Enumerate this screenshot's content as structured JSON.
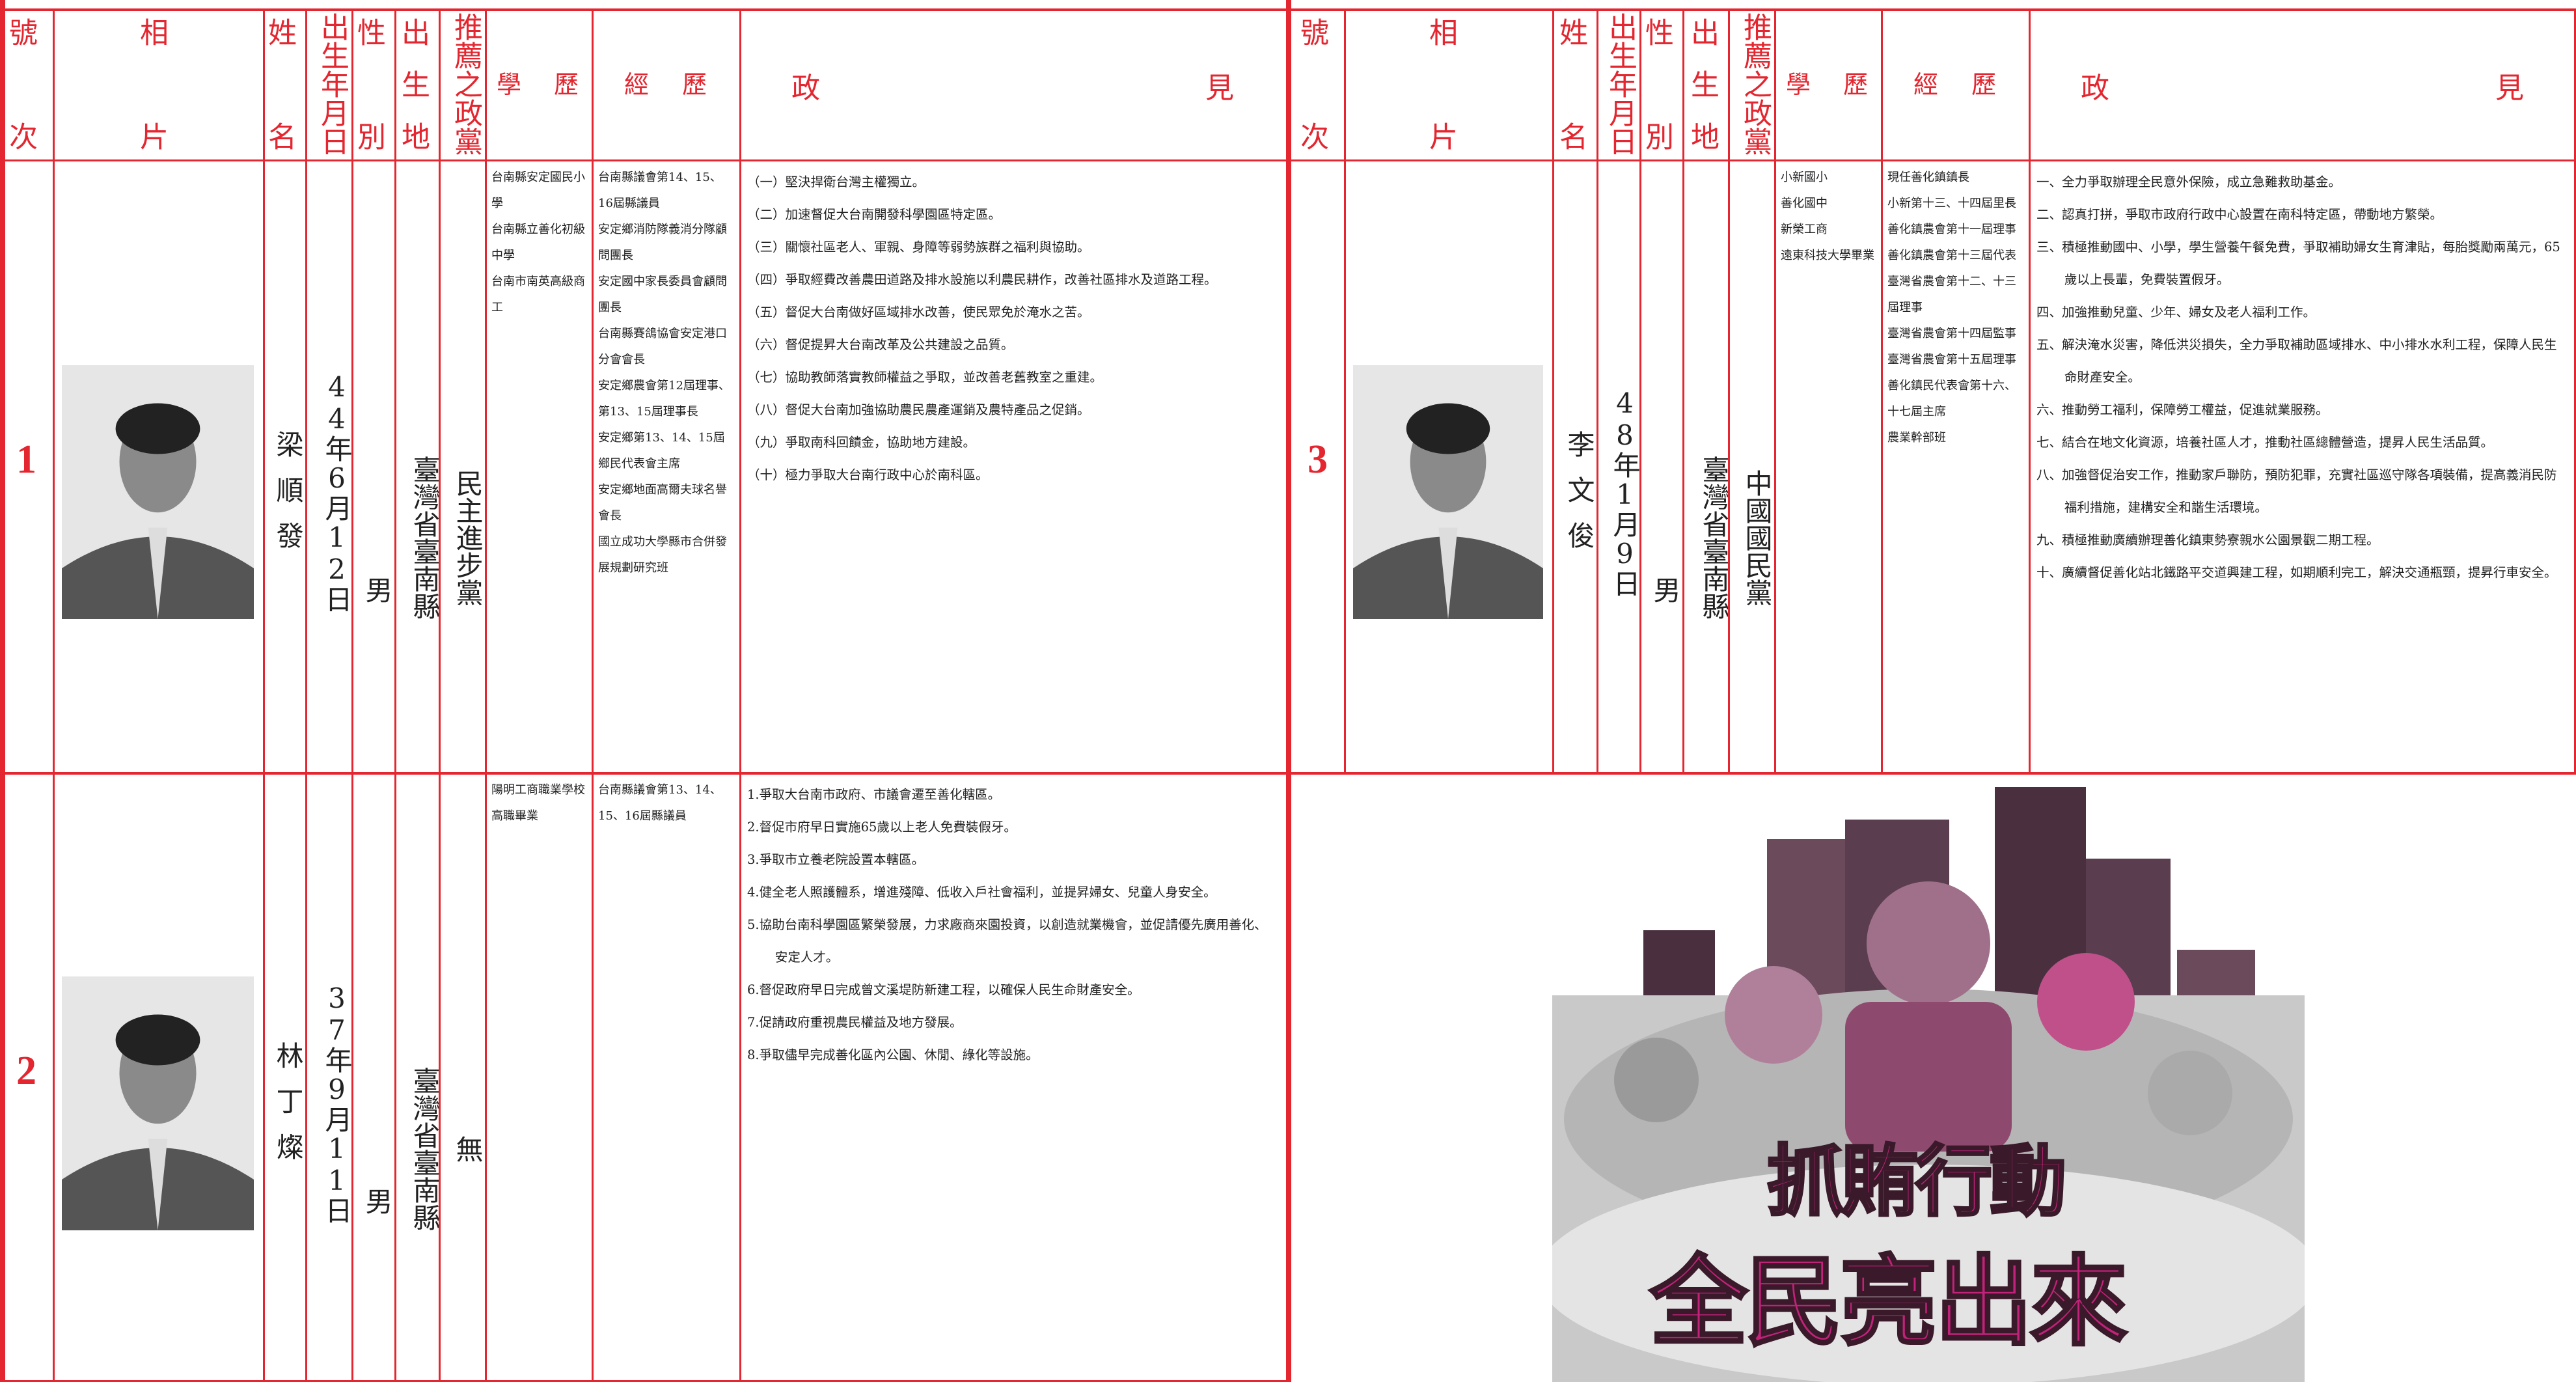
{
  "headers": [
    "號次",
    "相片",
    "姓名",
    "出生年月日",
    "性別",
    "出生地",
    "推薦之政黨",
    "學歷",
    "經歷",
    "政見"
  ],
  "candidates": [
    {
      "number": "1",
      "name": "梁順發",
      "birth": "44年6月12日",
      "gender": "男",
      "birthplace": "臺灣省臺南縣",
      "party": "民主進步黨",
      "education": [
        "台南縣安定國民小學",
        "台南縣立善化初級中學",
        "台南市南英高級商工"
      ],
      "experience": [
        "台南縣議會第14、15、16屆縣議員",
        "安定鄉消防隊義消分隊顧問團長",
        "安定國中家長委員會顧問團長",
        "台南縣賽鴿協會安定港口分會會長",
        "安定鄉農會第12屆理事、第13、15屆理事長",
        "安定鄉第13、14、15屆鄉民代表會主席",
        "安定鄉地面高爾夫球名譽會長",
        "國立成功大學縣市合併發展規劃研究班"
      ],
      "platform": [
        "（一）堅決捍衛台灣主權獨立。",
        "（二）加速督促大台南開發科學園區特定區。",
        "（三）關懷社區老人、軍親、身障等弱勢族群之福利與協助。",
        "（四）爭取經費改善農田道路及排水設施以利農民耕作，改善社區排水及道路工程。",
        "（五）督促大台南做好區域排水改善，使民眾免於淹水之苦。",
        "（六）督促提昇大台南改革及公共建設之品質。",
        "（七）協助教師落實教師權益之爭取，並改善老舊教室之重建。",
        "（八）督促大台南加強協助農民農產運銷及農特產品之促銷。",
        "（九）爭取南科回饋金，協助地方建設。",
        "（十）極力爭取大台南行政中心於南科區。"
      ]
    },
    {
      "number": "2",
      "name": "林丁燦",
      "birth": "37年9月11日",
      "gender": "男",
      "birthplace": "臺灣省臺南縣",
      "party": "無",
      "education": [
        "陽明工商職業學校高職畢業"
      ],
      "experience": [
        "台南縣議會第13、14、15、16屆縣議員"
      ],
      "platform": [
        "1.爭取大台南市政府、市議會遷至善化轄區。",
        "2.督促市府早日實施65歲以上老人免費裝假牙。",
        "3.爭取市立養老院設置本轄區。",
        "4.健全老人照護體系，增進殘障、低收入戶社會福利，並提昇婦女、兒童人身安全。",
        "5.協助台南科學園區繁榮發展，力求廠商來園投資，以創造就業機會，並促請優先廣用善化、安定人才。",
        "6.督促政府早日完成曾文溪堤防新建工程，以確保人民生命財產安全。",
        "7.促請政府重視農民權益及地方發展。",
        "8.爭取儘早完成善化區內公園、休閒、綠化等設施。"
      ]
    },
    {
      "number": "3",
      "name": "李文俊",
      "birth": "48年1月9日",
      "gender": "男",
      "birthplace": "臺灣省臺南縣",
      "party": "中國國民黨",
      "education": [
        "小新國小",
        "善化國中",
        "新榮工商",
        "遠東科技大學畢業"
      ],
      "experience": [
        "現任善化鎮鎮長",
        "小新第十三、十四屆里長",
        "善化鎮農會第十一屆理事",
        "善化鎮農會第十三屆代表",
        "臺灣省農會第十二、十三屆理事",
        "臺灣省農會第十四屆監事",
        "臺灣省農會第十五屆理事",
        "善化鎮民代表會第十六、十七屆主席",
        "農業幹部班"
      ],
      "platform": [
        "一、全力爭取辦理全民意外保險，成立急難救助基金。",
        "二、認真打拼，爭取市政府行政中心設置在南科特定區，帶動地方繁榮。",
        "三、積極推動國中、小學，學生營養午餐免費，爭取補助婦女生育津貼，每胎獎勵兩萬元，65歲以上長輩，免費裝置假牙。",
        "四、加強推動兒童、少年、婦女及老人福利工作。",
        "五、解決淹水災害，降低洪災損失，全力爭取補助區域排水、中小排水水利工程，保障人民生命財產安全。",
        "六、推動勞工福利，保障勞工權益，促進就業服務。",
        "七、結合在地文化資源，培養社區人才，推動社區總體營造，提昇人民生活品質。",
        "八、加強督促治安工作，推動家戶聯防，預防犯罪，充實社區巡守隊各項裝備，提高義消民防福利措施，建構安全和諧生活環境。",
        "九、積極推動廣續辦理善化鎮東勢寮親水公園景觀二期工程。",
        "十、廣續督促善化站北鐵路平交道興建工程，如期順利完工，解決交通瓶頸，提昇行車安全。"
      ]
    }
  ],
  "poster": {
    "line1": "抓賄行動",
    "line2": "全民亮出來"
  }
}
